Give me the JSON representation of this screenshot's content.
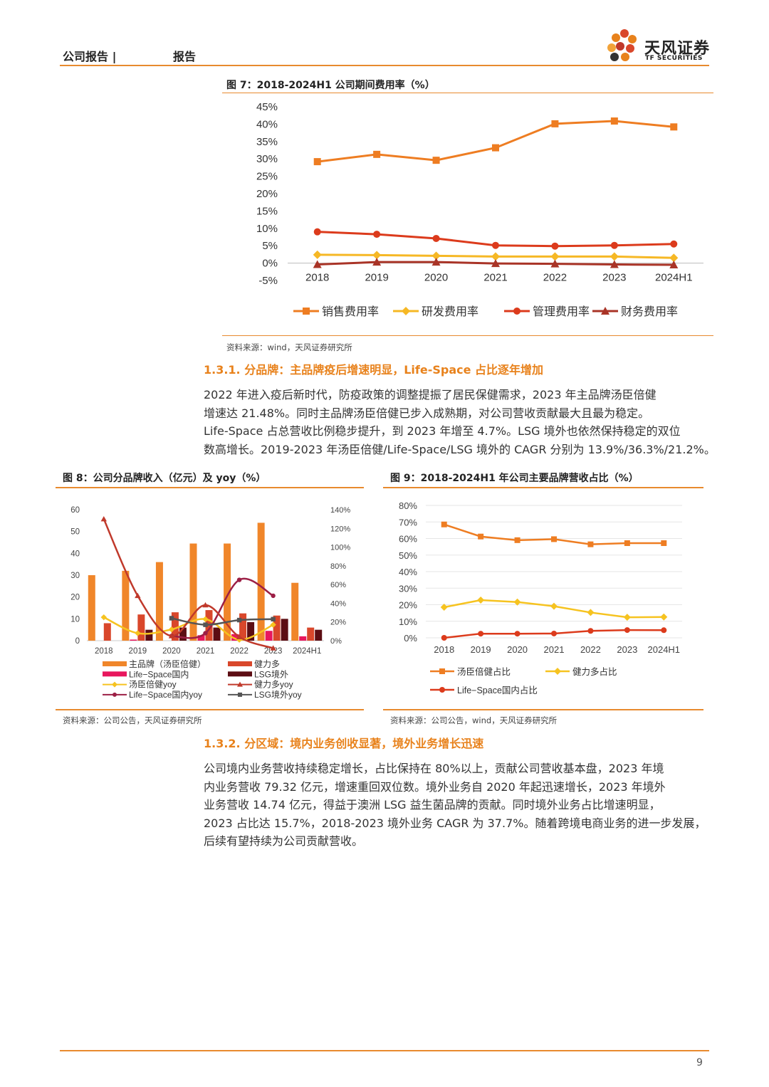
{
  "header": {
    "left": "公司报告 |",
    "type": "报告",
    "logo_cn": "天风证券",
    "logo_en": "TF SECURITIES"
  },
  "fig7": {
    "title": "图 7：2018-2024H1 公司期间费用率（%）",
    "source": "资料来源：wind，天风证券研究所"
  },
  "sec131": {
    "heading": "1.3.1. 分品牌：主品牌疫后增速明显，Life-Space 占比逐年增加",
    "lines": [
      "2022 年进入疫后新时代，防疫政策的调整提振了居民保健需求，2023 年主品牌汤臣倍健",
      "增速达  21.48%。同时主品牌汤臣倍健已步入成熟期，对公司营收贡献最大且最为稳定。",
      "Life-Space 占总营收比例稳步提升，到 2023 年增至 4.7%。LSG 境外也依然保持稳定的双位",
      "数高增长。2019-2023 年汤臣倍健/Life-Space/LSG 境外的 CAGR 分别为 13.9%/36.3%/21.2%。"
    ]
  },
  "fig8": {
    "title": "图 8：公司分品牌收入（亿元）及 yoy（%）",
    "source": "资料来源：公司公告，天风证券研究所"
  },
  "fig9": {
    "title": "图 9：2018-2024H1 年公司主要品牌营收占比（%）",
    "source": "资料来源：公司公告，wind，天风证券研究所"
  },
  "sec132": {
    "heading": "1.3.2. 分区域：境内业务创收显著，境外业务增长迅速",
    "lines": [
      "公司境内业务营收持续稳定增长，占比保持在 80%以上，贡献公司营收基本盘，2023 年境",
      "内业务营收 79.32 亿元，增速重回双位数。境外业务自 2020 年起迅速增长，2023 年境外",
      "业务营收 14.74 亿元，得益于澳洲 LSG 益生菌品牌的贡献。同时境外业务占比增速明显，",
      "2023 占比达 15.7%，2018-2023 境外业务 CAGR 为 37.7%。随着跨境电商业务的进一步发展，",
      "后续有望持续为公司贡献营收。"
    ]
  },
  "page_number": "9",
  "chart_data": [
    {
      "id": "fig7",
      "type": "line",
      "categories": [
        "2018",
        "2019",
        "2020",
        "2021",
        "2022",
        "2023",
        "2024H1"
      ],
      "ylim": [
        -5,
        45
      ],
      "yticks": [
        "-5%",
        "0%",
        "5%",
        "10%",
        "15%",
        "20%",
        "25%",
        "30%",
        "35%",
        "40%",
        "45%"
      ],
      "series": [
        {
          "name": "销售费用率",
          "color": "#ee7d22",
          "marker": "square",
          "values": [
            29.2,
            31.3,
            29.6,
            33.2,
            40.1,
            40.9,
            39.2
          ]
        },
        {
          "name": "研发费用率",
          "color": "#f6b825",
          "marker": "diamond",
          "values": [
            2.4,
            2.3,
            2.1,
            1.9,
            1.9,
            1.9,
            1.5
          ]
        },
        {
          "name": "管理费用率",
          "color": "#dc3b1c",
          "marker": "circle",
          "values": [
            9.0,
            8.3,
            7.1,
            5.1,
            4.9,
            5.1,
            5.5
          ]
        },
        {
          "name": "财务费用率",
          "color": "#a93427",
          "marker": "triangle",
          "values": [
            -0.4,
            0.3,
            0.3,
            -0.1,
            -0.2,
            -0.4,
            -0.5
          ]
        }
      ]
    },
    {
      "id": "fig8",
      "type": "bar+line",
      "categories": [
        "2018",
        "2019",
        "2020",
        "2021",
        "2022",
        "2023",
        "2024H1"
      ],
      "ylim_left": [
        0,
        60
      ],
      "yticks_left": [
        "0",
        "10",
        "20",
        "30",
        "40",
        "50",
        "60"
      ],
      "ylim_right": [
        0,
        140
      ],
      "yticks_right": [
        "0%",
        "20%",
        "40%",
        "60%",
        "80%",
        "100%",
        "120%",
        "140%"
      ],
      "bars": [
        {
          "name": "主品牌（汤臣倍健）",
          "color": "#f0862a",
          "values": [
            30,
            32,
            36,
            44.5,
            44.5,
            54,
            26.5
          ]
        },
        {
          "name": "Life−Space国内",
          "color": "#e8175d",
          "values": [
            0,
            0.5,
            0,
            2.5,
            3,
            4.5,
            2
          ]
        },
        {
          "name": "健力多",
          "color": "#d9472b",
          "values": [
            8,
            12,
            13,
            14,
            12.5,
            11.5,
            6
          ]
        },
        {
          "name": "LSG境外",
          "color": "#5c0d13",
          "values": [
            0,
            5,
            6,
            6,
            8.5,
            10,
            5
          ]
        }
      ],
      "lines": [
        {
          "name": "汤臣倍健yoy",
          "color": "#f6c320",
          "marker": "diamond",
          "values": [
            25,
            8,
            12,
            23,
            1,
            17,
            null
          ]
        },
        {
          "name": "Life−Space国内yoy",
          "color": "#9c1f45",
          "marker": "circle",
          "values": [
            null,
            null,
            5,
            8,
            65,
            48,
            null
          ]
        },
        {
          "name": "健力多yoy",
          "color": "#c0392b",
          "marker": "triangle",
          "values": [
            130,
            48,
            5,
            38,
            4,
            -8,
            null
          ]
        },
        {
          "name": "LSG境外yoy",
          "color": "#555555",
          "marker": "square",
          "values": [
            null,
            null,
            24,
            17,
            22,
            23,
            null
          ]
        }
      ],
      "legend": [
        "主品牌（汤臣倍健）",
        "健力多",
        "Life−Space国内",
        "LSG境外",
        "汤臣倍健yoy",
        "健力多yoy",
        "Life−Space国内yoy",
        "LSG境外yoy"
      ]
    },
    {
      "id": "fig9",
      "type": "line",
      "categories": [
        "2018",
        "2019",
        "2020",
        "2021",
        "2022",
        "2023",
        "2024H1"
      ],
      "ylim": [
        0,
        80
      ],
      "yticks": [
        "0%",
        "10%",
        "20%",
        "30%",
        "40%",
        "50%",
        "60%",
        "70%",
        "80%"
      ],
      "series": [
        {
          "name": "汤臣倍健占比",
          "color": "#ee7d22",
          "marker": "square",
          "values": [
            68.5,
            61.2,
            59.0,
            59.6,
            56.5,
            57.2,
            57.2
          ]
        },
        {
          "name": "健力多占比",
          "color": "#f6c320",
          "marker": "diamond",
          "values": [
            18.5,
            22.8,
            21.6,
            19.1,
            15.3,
            12.4,
            12.6
          ]
        },
        {
          "name": "Life−Space国内占比",
          "color": "#dc3b1c",
          "marker": "circle",
          "values": [
            0,
            2.5,
            2.5,
            2.6,
            4.2,
            4.7,
            4.6
          ]
        }
      ]
    }
  ]
}
